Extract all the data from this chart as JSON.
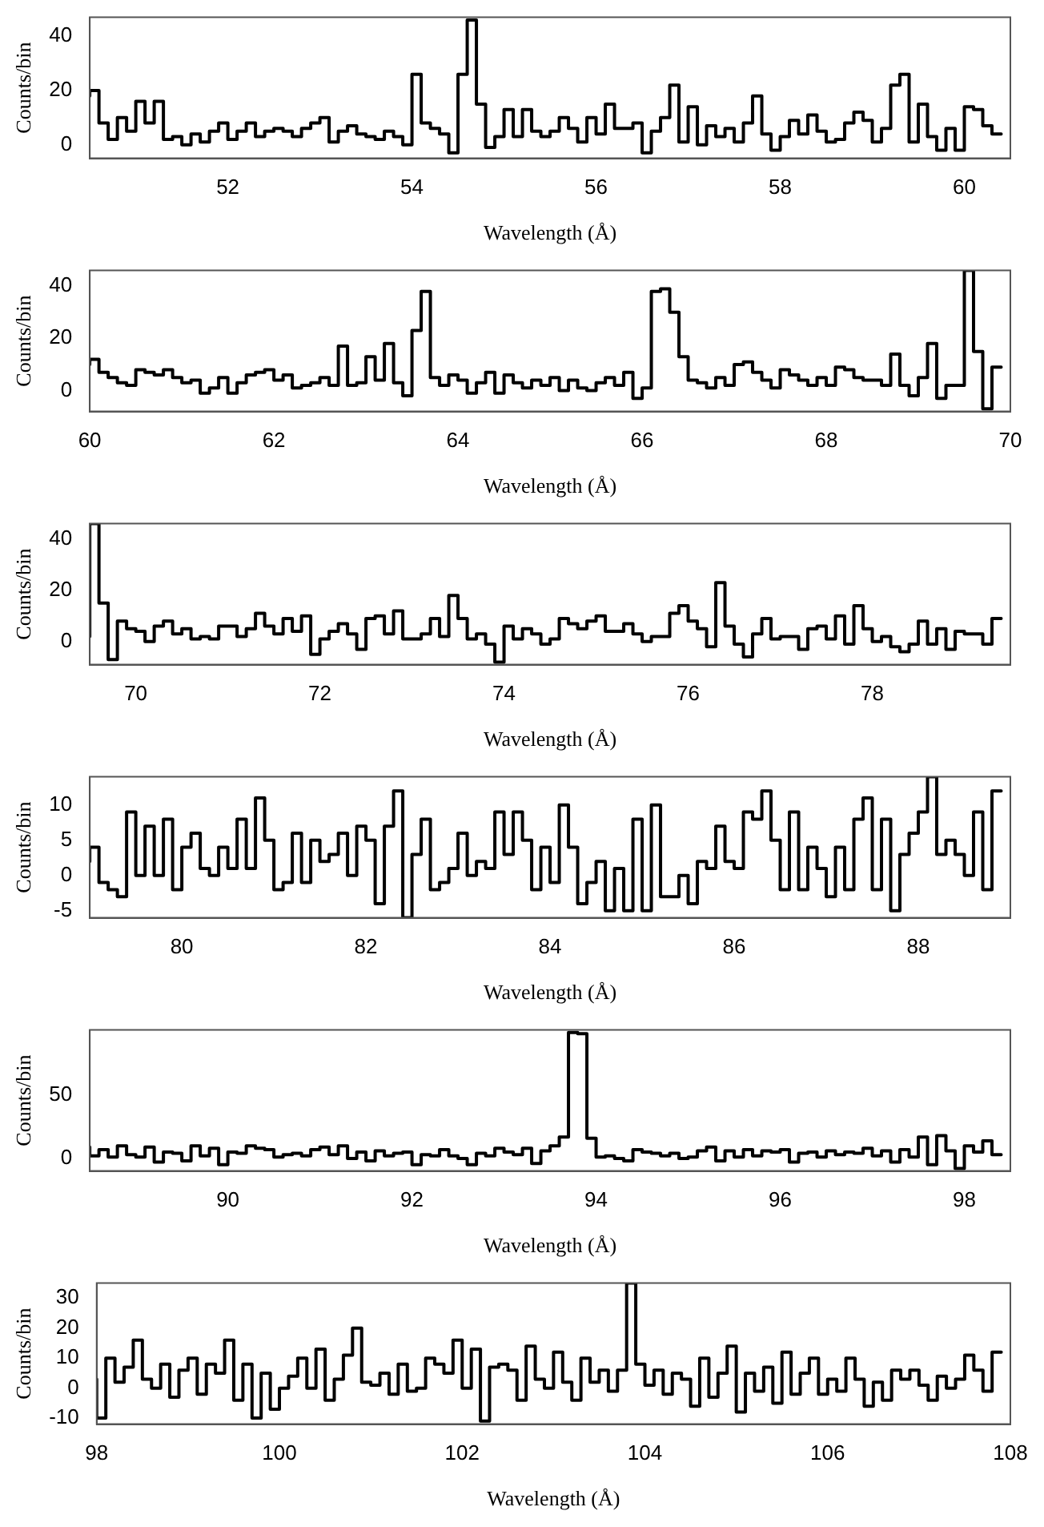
{
  "chart_data": [
    {
      "type": "step",
      "xlabel": "Wavelength (Å)",
      "ylabel": "Counts/bin",
      "xlim": [
        50.5,
        60.5
      ],
      "xticks": [
        52,
        54,
        56,
        58,
        60
      ],
      "ylim": [
        -5,
        47
      ],
      "yticks": [
        0,
        20,
        40
      ],
      "x": [
        50.5,
        50.6,
        50.7,
        50.8,
        50.9,
        51.0,
        51.1,
        51.2,
        51.3,
        51.4,
        51.5,
        51.6,
        51.7,
        51.8,
        51.9,
        52.0,
        52.1,
        52.2,
        52.3,
        52.4,
        52.5,
        52.6,
        52.7,
        52.8,
        52.9,
        53.0,
        53.1,
        53.2,
        53.3,
        53.4,
        53.5,
        53.6,
        53.7,
        53.8,
        53.9,
        54.0,
        54.1,
        54.2,
        54.3,
        54.4,
        54.5,
        54.6,
        54.7,
        54.8,
        54.9,
        55.0,
        55.1,
        55.2,
        55.3,
        55.4,
        55.5,
        55.6,
        55.7,
        55.8,
        55.9,
        56.0,
        56.1,
        56.2,
        56.3,
        56.4,
        56.5,
        56.6,
        56.7,
        56.8,
        56.9,
        57.0,
        57.1,
        57.2,
        57.3,
        57.4,
        57.5,
        57.6,
        57.7,
        57.8,
        57.9,
        58.0,
        58.1,
        58.2,
        58.3,
        58.4,
        58.5,
        58.6,
        58.7,
        58.8,
        58.9,
        59.0,
        59.1,
        59.2,
        59.3,
        59.4,
        59.5,
        59.6,
        59.7,
        59.8,
        59.9,
        60.0,
        60.1,
        60.2,
        60.3,
        60.4
      ],
      "series": [
        {
          "color": "#000000",
          "values": [
            18,
            20,
            8,
            2,
            10,
            5,
            16,
            8,
            16,
            2,
            3,
            0,
            4,
            1,
            5,
            8,
            2,
            5,
            8,
            3,
            5,
            6,
            5,
            3,
            6,
            8,
            10,
            1,
            5,
            7,
            4,
            3,
            2,
            5,
            3,
            0,
            26,
            8,
            6,
            4,
            -3,
            26,
            46,
            15,
            -1,
            3,
            13,
            3,
            13,
            5,
            3,
            5,
            10,
            6,
            1,
            10,
            4,
            15,
            6,
            6,
            8,
            -3,
            5,
            10,
            22,
            1,
            14,
            0,
            7,
            3,
            6,
            1,
            8,
            18,
            4,
            -2,
            3,
            9,
            4,
            11,
            5,
            1,
            2,
            8,
            12,
            9,
            1,
            6,
            22,
            26,
            1,
            15,
            3,
            -2,
            6,
            -2,
            14,
            13,
            7,
            4
          ]
        }
      ]
    },
    {
      "type": "step",
      "xlabel": "Wavelength (Å)",
      "ylabel": "Counts/bin",
      "xlim": [
        60,
        70
      ],
      "xticks": [
        60,
        62,
        64,
        66,
        68,
        70
      ],
      "ylim": [
        -8,
        46
      ],
      "yticks": [
        0,
        20,
        40
      ],
      "x": [
        60.0,
        60.1,
        60.2,
        60.3,
        60.4,
        60.5,
        60.6,
        60.7,
        60.8,
        60.9,
        61.0,
        61.1,
        61.2,
        61.3,
        61.4,
        61.5,
        61.6,
        61.7,
        61.8,
        61.9,
        62.0,
        62.1,
        62.2,
        62.3,
        62.4,
        62.5,
        62.6,
        62.7,
        62.8,
        62.9,
        63.0,
        63.1,
        63.2,
        63.3,
        63.4,
        63.5,
        63.6,
        63.7,
        63.8,
        63.9,
        64.0,
        64.1,
        64.2,
        64.3,
        64.4,
        64.5,
        64.6,
        64.7,
        64.8,
        64.9,
        65.0,
        65.1,
        65.2,
        65.3,
        65.4,
        65.5,
        65.6,
        65.7,
        65.8,
        65.9,
        66.0,
        66.1,
        66.2,
        66.3,
        66.4,
        66.5,
        66.6,
        66.7,
        66.8,
        66.9,
        67.0,
        67.1,
        67.2,
        67.3,
        67.4,
        67.5,
        67.6,
        67.7,
        67.8,
        67.9,
        68.0,
        68.1,
        68.2,
        68.3,
        68.4,
        68.5,
        68.6,
        68.7,
        68.8,
        68.9,
        69.0,
        69.1,
        69.2,
        69.3,
        69.4,
        69.5,
        69.6,
        69.7,
        69.8,
        69.9
      ],
      "series": [
        {
          "color": "#000000",
          "values": [
            10,
            12,
            7,
            5,
            3,
            2,
            8,
            7,
            6,
            8,
            5,
            3,
            4,
            -1,
            1,
            5,
            -1,
            3,
            6,
            7,
            8,
            4,
            6,
            1,
            2,
            3,
            5,
            2,
            17,
            2,
            3,
            13,
            4,
            18,
            3,
            -2,
            23,
            38,
            5,
            2,
            6,
            4,
            -1,
            3,
            7,
            -1,
            6,
            3,
            1,
            4,
            2,
            5,
            0,
            4,
            1,
            0,
            3,
            5,
            2,
            7,
            -3,
            1,
            38,
            39,
            30,
            13,
            4,
            3,
            1,
            5,
            2,
            10,
            11,
            7,
            4,
            1,
            8,
            6,
            4,
            2,
            5,
            2,
            9,
            8,
            5,
            4,
            4,
            2,
            14,
            2,
            -2,
            5,
            18,
            -3,
            2,
            2,
            46,
            15,
            -7,
            9
          ]
        }
      ]
    },
    {
      "type": "step",
      "xlabel": "Wavelength (Å)",
      "ylabel": "Counts/bin",
      "xlim": [
        69.5,
        79.5
      ],
      "xticks": [
        70,
        72,
        74,
        76,
        78
      ],
      "ylim": [
        -9,
        46
      ],
      "yticks": [
        0,
        20,
        40
      ],
      "x": [
        69.5,
        69.6,
        69.7,
        69.8,
        69.9,
        70.0,
        70.1,
        70.2,
        70.3,
        70.4,
        70.5,
        70.6,
        70.7,
        70.8,
        70.9,
        71.0,
        71.1,
        71.2,
        71.3,
        71.4,
        71.5,
        71.6,
        71.7,
        71.8,
        71.9,
        72.0,
        72.1,
        72.2,
        72.3,
        72.4,
        72.5,
        72.6,
        72.7,
        72.8,
        72.9,
        73.0,
        73.1,
        73.2,
        73.3,
        73.4,
        73.5,
        73.6,
        73.7,
        73.8,
        73.9,
        74.0,
        74.1,
        74.2,
        74.3,
        74.4,
        74.5,
        74.6,
        74.7,
        74.8,
        74.9,
        75.0,
        75.1,
        75.2,
        75.3,
        75.4,
        75.5,
        75.6,
        75.7,
        75.8,
        75.9,
        76.0,
        76.1,
        76.2,
        76.3,
        76.4,
        76.5,
        76.6,
        76.7,
        76.8,
        76.9,
        77.0,
        77.1,
        77.2,
        77.3,
        77.4,
        77.5,
        77.6,
        77.7,
        77.8,
        77.9,
        78.0,
        78.1,
        78.2,
        78.3,
        78.4,
        78.5,
        78.6,
        78.7,
        78.8,
        78.9,
        79.0,
        79.1,
        79.2,
        79.3,
        79.4
      ],
      "series": [
        {
          "color": "#000000",
          "values": [
            2,
            46,
            15,
            -7,
            8,
            5,
            4,
            0,
            6,
            8,
            3,
            5,
            1,
            2,
            1,
            6,
            6,
            2,
            5,
            11,
            6,
            3,
            9,
            4,
            10,
            -5,
            1,
            4,
            7,
            3,
            -3,
            9,
            10,
            3,
            12,
            1,
            1,
            3,
            9,
            2,
            18,
            9,
            1,
            3,
            -1,
            -8,
            6,
            1,
            5,
            3,
            -1,
            1,
            9,
            7,
            5,
            8,
            10,
            4,
            4,
            7,
            3,
            0,
            2,
            2,
            11,
            14,
            8,
            5,
            -2,
            23,
            6,
            -1,
            -6,
            3,
            9,
            1,
            2,
            2,
            -3,
            5,
            6,
            1,
            10,
            -1,
            14,
            5,
            0,
            2,
            -2,
            -4,
            -1,
            8,
            -1,
            5,
            -3,
            4,
            3,
            3,
            -1,
            9
          ]
        }
      ]
    },
    {
      "type": "step",
      "xlabel": "Wavelength (Å)",
      "ylabel": "Counts/bin",
      "xlim": [
        79,
        89
      ],
      "xticks": [
        80,
        82,
        84,
        86,
        88
      ],
      "ylim": [
        -6,
        14
      ],
      "yticks": [
        -5,
        0,
        5,
        10
      ],
      "x": [
        79.0,
        79.1,
        79.2,
        79.3,
        79.4,
        79.5,
        79.6,
        79.7,
        79.8,
        79.9,
        80.0,
        80.1,
        80.2,
        80.3,
        80.4,
        80.5,
        80.6,
        80.7,
        80.8,
        80.9,
        81.0,
        81.1,
        81.2,
        81.3,
        81.4,
        81.5,
        81.6,
        81.7,
        81.8,
        81.9,
        82.0,
        82.1,
        82.2,
        82.3,
        82.4,
        82.5,
        82.6,
        82.7,
        82.8,
        82.9,
        83.0,
        83.1,
        83.2,
        83.3,
        83.4,
        83.5,
        83.6,
        83.7,
        83.8,
        83.9,
        84.0,
        84.1,
        84.2,
        84.3,
        84.4,
        84.5,
        84.6,
        84.7,
        84.8,
        84.9,
        85.0,
        85.1,
        85.2,
        85.3,
        85.4,
        85.5,
        85.6,
        85.7,
        85.8,
        85.9,
        86.0,
        86.1,
        86.2,
        86.3,
        86.4,
        86.5,
        86.6,
        86.7,
        86.8,
        86.9,
        87.0,
        87.1,
        87.2,
        87.3,
        87.4,
        87.5,
        87.6,
        87.7,
        87.8,
        87.9,
        88.0,
        88.1,
        88.2,
        88.3,
        88.4,
        88.5,
        88.6,
        88.7,
        88.8,
        88.9
      ],
      "series": [
        {
          "color": "#000000",
          "values": [
            2,
            4,
            -1,
            -2,
            -3,
            9,
            0,
            7,
            0,
            8,
            -2,
            4,
            6,
            1,
            0,
            4,
            1,
            8,
            1,
            11,
            5,
            -2,
            -1,
            6,
            -1,
            5,
            2,
            3,
            6,
            0,
            7,
            5,
            -4,
            7,
            12,
            -6,
            3,
            8,
            -2,
            -1,
            1,
            6,
            0,
            2,
            1,
            9,
            3,
            9,
            5,
            -2,
            4,
            -1,
            10,
            4,
            -4,
            -1,
            2,
            -5,
            1,
            -5,
            8,
            -5,
            10,
            -3,
            -3,
            0,
            -4,
            2,
            1,
            7,
            2,
            1,
            9,
            8,
            12,
            5,
            -2,
            9,
            -2,
            4,
            1,
            -3,
            4,
            -2,
            8,
            11,
            -2,
            8,
            -5,
            3,
            6,
            9,
            14,
            3,
            5,
            3,
            0,
            9,
            -2,
            12
          ]
        }
      ]
    },
    {
      "type": "step",
      "xlabel": "Wavelength (Å)",
      "ylabel": "Counts/bin",
      "xlim": [
        88.5,
        98.5
      ],
      "xticks": [
        90,
        92,
        94,
        96,
        98
      ],
      "ylim": [
        -10,
        102
      ],
      "yticks": [
        0,
        50
      ],
      "x": [
        88.5,
        88.6,
        88.7,
        88.8,
        88.9,
        89.0,
        89.1,
        89.2,
        89.3,
        89.4,
        89.5,
        89.6,
        89.7,
        89.8,
        89.9,
        90.0,
        90.1,
        90.2,
        90.3,
        90.4,
        90.5,
        90.6,
        90.7,
        90.8,
        90.9,
        91.0,
        91.1,
        91.2,
        91.3,
        91.4,
        91.5,
        91.6,
        91.7,
        91.8,
        91.9,
        92.0,
        92.1,
        92.2,
        92.3,
        92.4,
        92.5,
        92.6,
        92.7,
        92.8,
        92.9,
        93.0,
        93.1,
        93.2,
        93.3,
        93.4,
        93.5,
        93.6,
        93.7,
        93.8,
        93.9,
        94.0,
        94.1,
        94.2,
        94.3,
        94.4,
        94.5,
        94.6,
        94.7,
        94.8,
        94.9,
        95.0,
        95.1,
        95.2,
        95.3,
        95.4,
        95.5,
        95.6,
        95.7,
        95.8,
        95.9,
        96.0,
        96.1,
        96.2,
        96.3,
        96.4,
        96.5,
        96.6,
        96.7,
        96.8,
        96.9,
        97.0,
        97.1,
        97.2,
        97.3,
        97.4,
        97.5,
        97.6,
        97.7,
        97.8,
        97.9,
        98.0,
        98.1,
        98.2,
        98.3,
        98.4
      ],
      "series": [
        {
          "color": "#000000",
          "values": [
            9,
            2,
            7,
            1,
            10,
            3,
            1,
            9,
            -3,
            5,
            4,
            -2,
            10,
            2,
            8,
            -5,
            5,
            4,
            10,
            8,
            7,
            1,
            3,
            4,
            2,
            7,
            9,
            3,
            10,
            0,
            5,
            -2,
            6,
            2,
            4,
            5,
            -5,
            3,
            2,
            7,
            2,
            0,
            -5,
            4,
            2,
            8,
            5,
            3,
            8,
            -4,
            6,
            10,
            17,
            100,
            99,
            16,
            1,
            2,
            0,
            -2,
            7,
            5,
            4,
            2,
            4,
            0,
            1,
            6,
            9,
            -2,
            6,
            1,
            7,
            2,
            6,
            5,
            7,
            -3,
            4,
            5,
            1,
            6,
            3,
            5,
            4,
            8,
            2,
            6,
            -3,
            7,
            1,
            17,
            -5,
            18,
            6,
            -8,
            10,
            5,
            14,
            3
          ]
        }
      ]
    },
    {
      "type": "step",
      "xlabel": "Wavelength (Å)",
      "ylabel": "Counts/bin",
      "xlim": [
        98,
        108
      ],
      "xticks": [
        98,
        100,
        102,
        104,
        106,
        108
      ],
      "ylim": [
        -12,
        35
      ],
      "yticks": [
        -10,
        0,
        10,
        20,
        30
      ],
      "x": [
        98.0,
        98.1,
        98.2,
        98.3,
        98.4,
        98.5,
        98.6,
        98.7,
        98.8,
        98.9,
        99.0,
        99.1,
        99.2,
        99.3,
        99.4,
        99.5,
        99.6,
        99.7,
        99.8,
        99.9,
        100.0,
        100.1,
        100.2,
        100.3,
        100.4,
        100.5,
        100.6,
        100.7,
        100.8,
        100.9,
        101.0,
        101.1,
        101.2,
        101.3,
        101.4,
        101.5,
        101.6,
        101.7,
        101.8,
        101.9,
        102.0,
        102.1,
        102.2,
        102.3,
        102.4,
        102.5,
        102.6,
        102.7,
        102.8,
        102.9,
        103.0,
        103.1,
        103.2,
        103.3,
        103.4,
        103.5,
        103.6,
        103.7,
        103.8,
        103.9,
        104.0,
        104.1,
        104.2,
        104.3,
        104.4,
        104.5,
        104.6,
        104.7,
        104.8,
        104.9,
        105.0,
        105.1,
        105.2,
        105.3,
        105.4,
        105.5,
        105.6,
        105.7,
        105.8,
        105.9,
        106.0,
        106.1,
        106.2,
        106.3,
        106.4,
        106.5,
        106.6,
        106.7,
        106.8,
        106.9,
        107.0,
        107.1,
        107.2,
        107.3,
        107.4,
        107.5,
        107.6,
        107.7,
        107.8,
        107.9
      ],
      "series": [
        {
          "color": "#000000",
          "values": [
            3,
            -10,
            10,
            2,
            7,
            16,
            3,
            0,
            8,
            -3,
            6,
            10,
            -2,
            8,
            5,
            16,
            -4,
            8,
            -10,
            5,
            -7,
            0,
            4,
            10,
            0,
            13,
            -4,
            3,
            11,
            20,
            2,
            1,
            5,
            -2,
            8,
            -1,
            0,
            10,
            8,
            5,
            16,
            0,
            13,
            -11,
            7,
            8,
            6,
            -4,
            14,
            3,
            0,
            12,
            2,
            -4,
            10,
            2,
            6,
            -1,
            6,
            35,
            8,
            1,
            6,
            -2,
            5,
            3,
            -6,
            10,
            -3,
            5,
            14,
            -8,
            5,
            -1,
            7,
            -5,
            12,
            -2,
            5,
            10,
            -2,
            3,
            -1,
            10,
            3,
            -6,
            2,
            -4,
            6,
            3,
            6,
            1,
            -4,
            4,
            0,
            3,
            11,
            6,
            -1,
            12
          ]
        }
      ]
    }
  ]
}
